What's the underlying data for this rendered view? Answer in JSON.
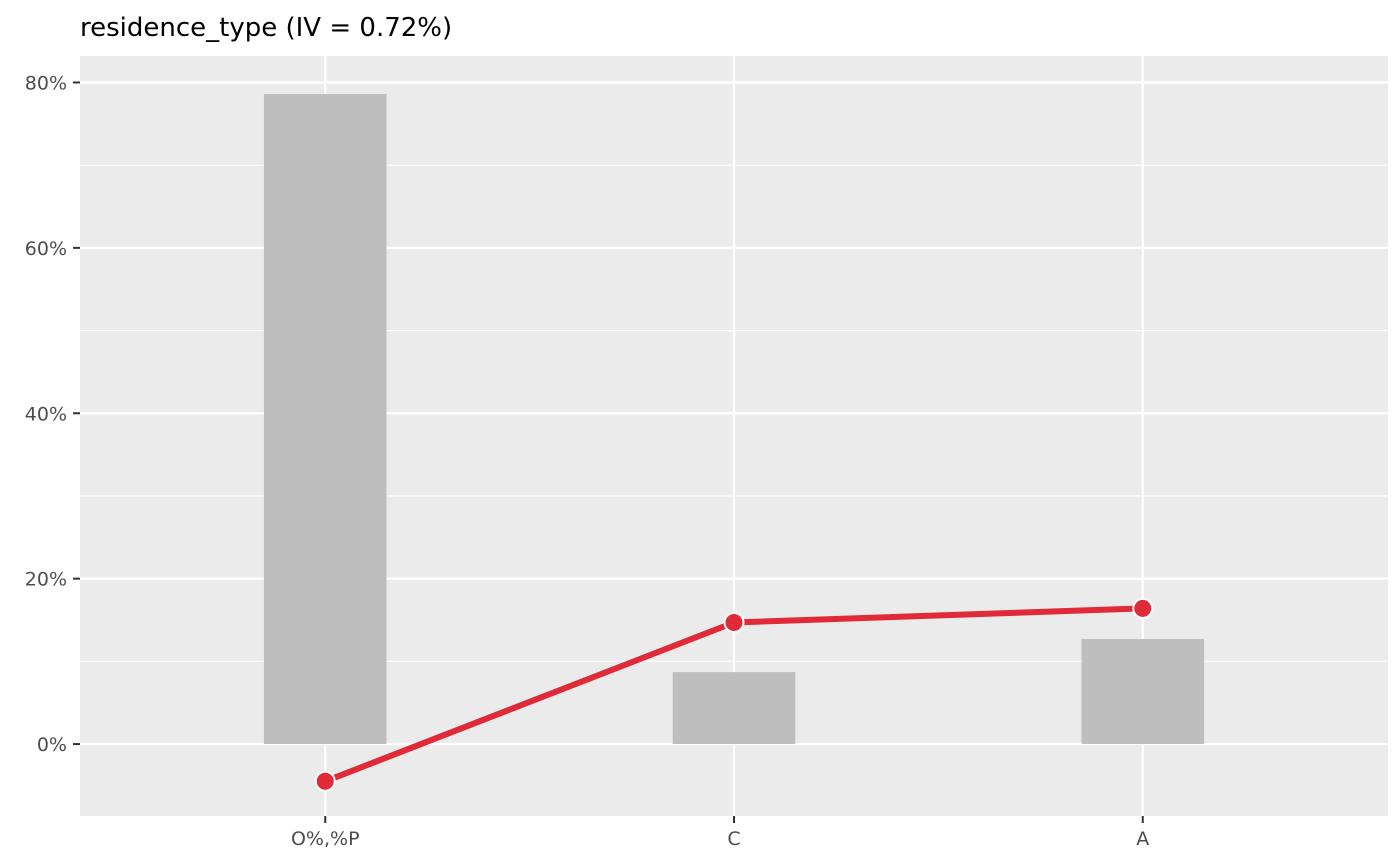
{
  "chart_data": {
    "type": "bar",
    "title": "residence_type (IV = 0.72%)",
    "xlabel": "",
    "ylabel": "",
    "categories": [
      "O%,%P",
      "C",
      "A"
    ],
    "series": [
      {
        "type": "bar",
        "values": [
          78.6,
          8.7,
          12.7
        ]
      },
      {
        "type": "line",
        "values": [
          -4.5,
          14.7,
          16.4
        ]
      }
    ],
    "yticks": [
      0,
      20,
      40,
      60,
      80
    ],
    "ytick_labels": [
      "0%",
      "20%",
      "40%",
      "60%",
      "80%"
    ],
    "ylim": [
      -8.7,
      83.2
    ],
    "grid": true,
    "legend": "none",
    "colors": {
      "panel_background": "#EBEBEB",
      "grid": "#FFFFFF",
      "bar": "#BEBEBE",
      "line": "#E02A37",
      "axis_text": "#4D4D4D",
      "tick": "#333333"
    }
  }
}
